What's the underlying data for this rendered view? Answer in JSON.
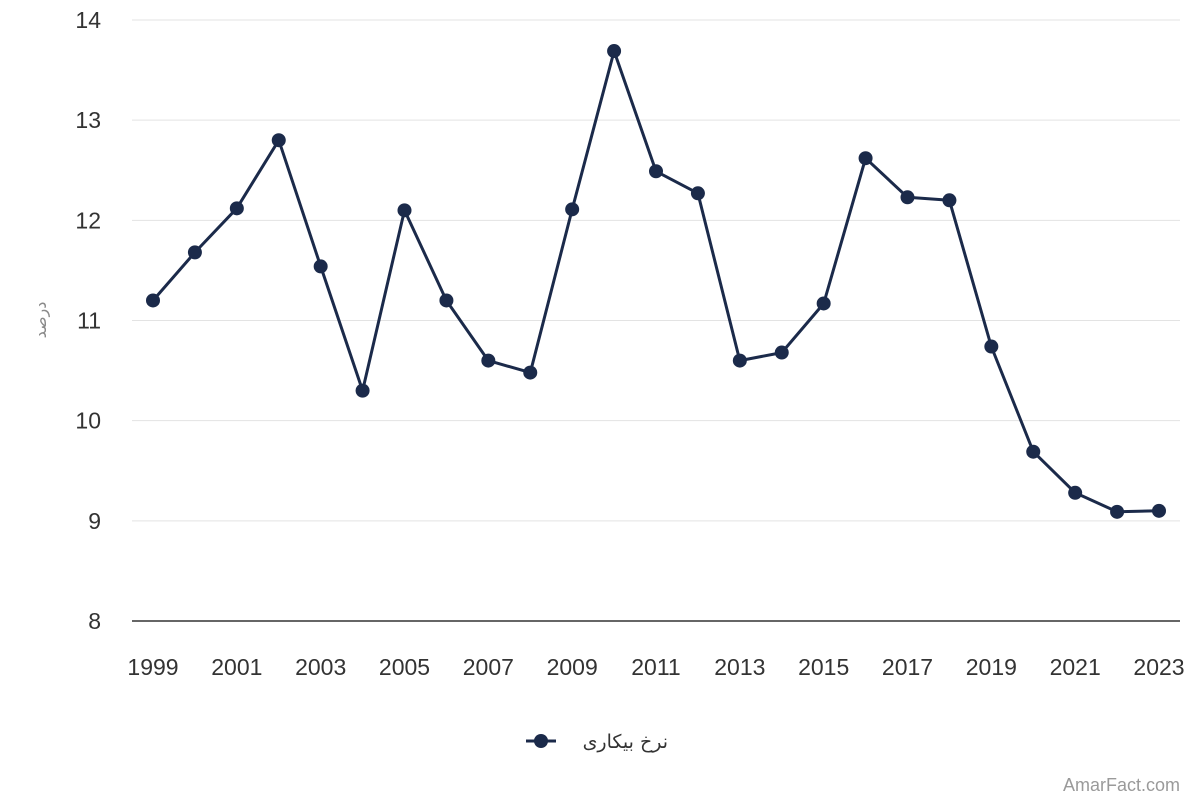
{
  "chart_data": {
    "type": "line",
    "title": "",
    "xlabel": "",
    "ylabel": "درصد",
    "ylim": [
      8,
      14
    ],
    "yticks": [
      8,
      9,
      10,
      11,
      12,
      13,
      14
    ],
    "xticks": [
      1999,
      2001,
      2003,
      2005,
      2007,
      2009,
      2011,
      2013,
      2015,
      2017,
      2019,
      2021,
      2023
    ],
    "grid": true,
    "legend_position": "bottom-center",
    "x": [
      1999,
      2000,
      2001,
      2002,
      2003,
      2004,
      2005,
      2006,
      2007,
      2008,
      2009,
      2010,
      2011,
      2012,
      2013,
      2014,
      2015,
      2016,
      2017,
      2018,
      2019,
      2020,
      2021,
      2022,
      2023
    ],
    "series": [
      {
        "name": "نرخ بیکاری",
        "color": "#1b2a4a",
        "values": [
          11.2,
          11.68,
          12.12,
          12.8,
          11.54,
          10.3,
          12.1,
          11.2,
          10.6,
          10.48,
          12.11,
          13.69,
          12.49,
          12.27,
          10.6,
          10.68,
          11.17,
          12.62,
          12.23,
          12.2,
          10.74,
          9.69,
          9.28,
          9.09,
          9.1
        ]
      }
    ]
  },
  "watermark": "AmarFact.com"
}
